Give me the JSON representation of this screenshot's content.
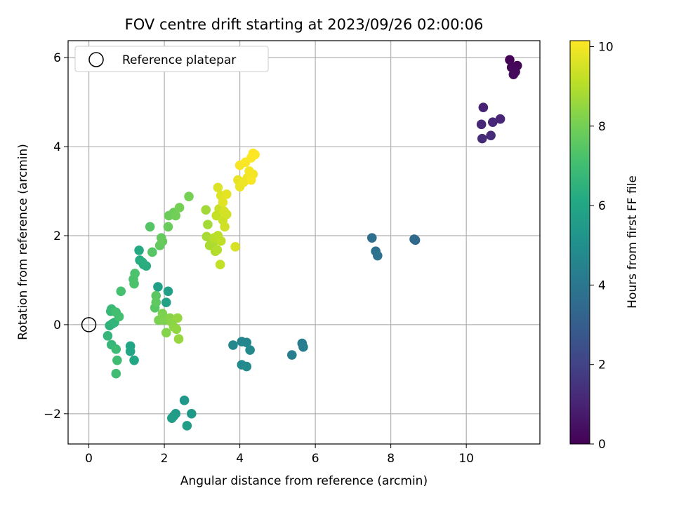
{
  "chart_data": {
    "type": "scatter",
    "title": "FOV centre drift starting at 2023/09/26 02:00:06",
    "xlabel": "Angular distance from reference (arcmin)",
    "ylabel": "Rotation from reference (arcmin)",
    "xlim": [
      -0.55,
      11.95
    ],
    "ylim": [
      -2.68,
      6.38
    ],
    "xticks": [
      0,
      2,
      4,
      6,
      8,
      10
    ],
    "yticks": [
      -2,
      0,
      2,
      4,
      6
    ],
    "grid": true,
    "legend": {
      "placement": "top-left",
      "entries": [
        "Reference platepar"
      ]
    },
    "reference_point": {
      "x": 0,
      "y": 0
    },
    "colorbar": {
      "label": "Hours from first FF file",
      "range": [
        0,
        10.15
      ],
      "ticks": [
        0,
        2,
        4,
        6,
        8,
        10
      ],
      "colormap": "viridis"
    },
    "points": [
      {
        "x": 11.15,
        "y": 5.95,
        "t": 0.05
      },
      {
        "x": 11.35,
        "y": 5.82,
        "t": 0.1
      },
      {
        "x": 11.2,
        "y": 5.78,
        "t": 0.15
      },
      {
        "x": 11.3,
        "y": 5.68,
        "t": 0.2
      },
      {
        "x": 11.25,
        "y": 5.62,
        "t": 0.25
      },
      {
        "x": 10.45,
        "y": 4.88,
        "t": 1.0
      },
      {
        "x": 10.9,
        "y": 4.62,
        "t": 1.05
      },
      {
        "x": 10.7,
        "y": 4.55,
        "t": 1.1
      },
      {
        "x": 10.4,
        "y": 4.5,
        "t": 1.15
      },
      {
        "x": 10.65,
        "y": 4.25,
        "t": 1.2
      },
      {
        "x": 10.42,
        "y": 4.18,
        "t": 1.25
      },
      {
        "x": 8.65,
        "y": 1.9,
        "t": 3.4
      },
      {
        "x": 8.62,
        "y": 1.92,
        "t": 3.45
      },
      {
        "x": 7.5,
        "y": 1.95,
        "t": 3.7
      },
      {
        "x": 7.6,
        "y": 1.65,
        "t": 3.75
      },
      {
        "x": 7.65,
        "y": 1.55,
        "t": 3.8
      },
      {
        "x": 5.65,
        "y": -0.42,
        "t": 4.2
      },
      {
        "x": 5.68,
        "y": -0.5,
        "t": 4.25
      },
      {
        "x": 5.38,
        "y": -0.68,
        "t": 4.3
      },
      {
        "x": 4.05,
        "y": -0.38,
        "t": 4.6
      },
      {
        "x": 4.18,
        "y": -0.4,
        "t": 4.65
      },
      {
        "x": 3.82,
        "y": -0.46,
        "t": 4.7
      },
      {
        "x": 4.27,
        "y": -0.57,
        "t": 4.75
      },
      {
        "x": 4.05,
        "y": -0.9,
        "t": 4.8
      },
      {
        "x": 4.18,
        "y": -0.94,
        "t": 4.85
      },
      {
        "x": 2.53,
        "y": -1.7,
        "t": 5.4
      },
      {
        "x": 2.72,
        "y": -2.0,
        "t": 5.45
      },
      {
        "x": 2.3,
        "y": -2.0,
        "t": 5.5
      },
      {
        "x": 2.25,
        "y": -2.05,
        "t": 5.55
      },
      {
        "x": 2.2,
        "y": -2.1,
        "t": 5.6
      },
      {
        "x": 2.6,
        "y": -2.27,
        "t": 5.65
      },
      {
        "x": 2.1,
        "y": 0.75,
        "t": 5.7
      },
      {
        "x": 1.83,
        "y": 0.85,
        "t": 5.75
      },
      {
        "x": 2.05,
        "y": 0.5,
        "t": 5.8
      },
      {
        "x": 1.1,
        "y": -0.48,
        "t": 5.95
      },
      {
        "x": 1.1,
        "y": -0.6,
        "t": 6.0
      },
      {
        "x": 1.2,
        "y": -0.8,
        "t": 6.05
      },
      {
        "x": 1.33,
        "y": 1.67,
        "t": 6.15
      },
      {
        "x": 1.35,
        "y": 1.45,
        "t": 6.2
      },
      {
        "x": 1.45,
        "y": 1.35,
        "t": 6.25
      },
      {
        "x": 1.52,
        "y": 1.32,
        "t": 6.3
      },
      {
        "x": 1.42,
        "y": 1.4,
        "t": 6.35
      },
      {
        "x": 0.55,
        "y": -0.02,
        "t": 6.5
      },
      {
        "x": 0.62,
        "y": 0.02,
        "t": 6.55
      },
      {
        "x": 0.68,
        "y": 0.05,
        "t": 6.6
      },
      {
        "x": 0.5,
        "y": -0.25,
        "t": 6.65
      },
      {
        "x": 0.6,
        "y": -0.45,
        "t": 6.7
      },
      {
        "x": 0.58,
        "y": 0.3,
        "t": 6.75
      },
      {
        "x": 0.6,
        "y": 0.35,
        "t": 6.8
      },
      {
        "x": 0.72,
        "y": -0.55,
        "t": 6.9
      },
      {
        "x": 0.75,
        "y": -0.8,
        "t": 6.95
      },
      {
        "x": 0.72,
        "y": -1.1,
        "t": 7.0
      },
      {
        "x": 0.72,
        "y": 0.28,
        "t": 7.05
      },
      {
        "x": 0.8,
        "y": 0.18,
        "t": 7.1
      },
      {
        "x": 0.85,
        "y": 0.75,
        "t": 7.15
      },
      {
        "x": 1.18,
        "y": 1.02,
        "t": 7.2
      },
      {
        "x": 1.22,
        "y": 1.15,
        "t": 7.25
      },
      {
        "x": 1.2,
        "y": 0.92,
        "t": 7.3
      },
      {
        "x": 1.62,
        "y": 2.2,
        "t": 7.4
      },
      {
        "x": 1.68,
        "y": 1.63,
        "t": 7.45
      },
      {
        "x": 1.75,
        "y": 0.38,
        "t": 7.5
      },
      {
        "x": 1.78,
        "y": 0.65,
        "t": 7.55
      },
      {
        "x": 1.78,
        "y": 0.5,
        "t": 7.6
      },
      {
        "x": 1.88,
        "y": 1.78,
        "t": 7.65
      },
      {
        "x": 1.92,
        "y": 1.95,
        "t": 7.7
      },
      {
        "x": 1.95,
        "y": 1.87,
        "t": 7.75
      },
      {
        "x": 2.1,
        "y": 2.2,
        "t": 7.8
      },
      {
        "x": 2.12,
        "y": 2.45,
        "t": 7.85
      },
      {
        "x": 2.25,
        "y": 2.52,
        "t": 7.9
      },
      {
        "x": 2.3,
        "y": 2.45,
        "t": 7.95
      },
      {
        "x": 2.4,
        "y": 2.63,
        "t": 8.0
      },
      {
        "x": 2.65,
        "y": 2.88,
        "t": 8.05
      },
      {
        "x": 1.85,
        "y": 0.1,
        "t": 8.1
      },
      {
        "x": 1.95,
        "y": 0.25,
        "t": 8.15
      },
      {
        "x": 2.0,
        "y": 0.1,
        "t": 8.2
      },
      {
        "x": 2.05,
        "y": -0.18,
        "t": 8.25
      },
      {
        "x": 2.15,
        "y": 0.15,
        "t": 8.3
      },
      {
        "x": 2.2,
        "y": 0.05,
        "t": 8.35
      },
      {
        "x": 2.25,
        "y": -0.05,
        "t": 8.4
      },
      {
        "x": 2.32,
        "y": -0.1,
        "t": 8.45
      },
      {
        "x": 2.35,
        "y": 0.15,
        "t": 8.5
      },
      {
        "x": 2.38,
        "y": -0.32,
        "t": 8.55
      },
      {
        "x": 3.1,
        "y": 2.58,
        "t": 8.7
      },
      {
        "x": 3.15,
        "y": 2.25,
        "t": 8.75
      },
      {
        "x": 3.12,
        "y": 1.98,
        "t": 8.8
      },
      {
        "x": 3.2,
        "y": 1.78,
        "t": 8.85
      },
      {
        "x": 3.3,
        "y": 1.85,
        "t": 8.9
      },
      {
        "x": 3.35,
        "y": 1.65,
        "t": 8.95
      },
      {
        "x": 3.4,
        "y": 1.68,
        "t": 9.0
      },
      {
        "x": 3.32,
        "y": 1.95,
        "t": 9.05
      },
      {
        "x": 3.42,
        "y": 2.0,
        "t": 9.1
      },
      {
        "x": 3.5,
        "y": 1.88,
        "t": 9.15
      },
      {
        "x": 3.48,
        "y": 1.35,
        "t": 9.2
      },
      {
        "x": 3.38,
        "y": 2.45,
        "t": 9.25
      },
      {
        "x": 3.45,
        "y": 2.6,
        "t": 9.3
      },
      {
        "x": 3.55,
        "y": 2.35,
        "t": 9.35
      },
      {
        "x": 3.6,
        "y": 2.2,
        "t": 9.4
      },
      {
        "x": 3.65,
        "y": 2.48,
        "t": 9.45
      },
      {
        "x": 3.58,
        "y": 2.55,
        "t": 9.5
      },
      {
        "x": 3.88,
        "y": 1.75,
        "t": 9.55
      },
      {
        "x": 3.42,
        "y": 3.08,
        "t": 9.6
      },
      {
        "x": 3.5,
        "y": 2.9,
        "t": 9.65
      },
      {
        "x": 3.55,
        "y": 2.75,
        "t": 9.7
      },
      {
        "x": 3.65,
        "y": 2.93,
        "t": 9.75
      },
      {
        "x": 3.95,
        "y": 3.25,
        "t": 9.8
      },
      {
        "x": 4.0,
        "y": 3.1,
        "t": 9.85
      },
      {
        "x": 4.1,
        "y": 3.2,
        "t": 9.9
      },
      {
        "x": 4.2,
        "y": 3.3,
        "t": 9.95
      },
      {
        "x": 4.25,
        "y": 3.45,
        "t": 10.0
      },
      {
        "x": 4.35,
        "y": 3.38,
        "t": 10.02
      },
      {
        "x": 4.3,
        "y": 3.25,
        "t": 10.05
      },
      {
        "x": 4.0,
        "y": 3.58,
        "t": 10.06
      },
      {
        "x": 4.15,
        "y": 3.65,
        "t": 10.08
      },
      {
        "x": 4.3,
        "y": 3.75,
        "t": 10.1
      },
      {
        "x": 4.4,
        "y": 3.82,
        "t": 10.12
      },
      {
        "x": 4.35,
        "y": 3.85,
        "t": 10.15
      }
    ]
  }
}
